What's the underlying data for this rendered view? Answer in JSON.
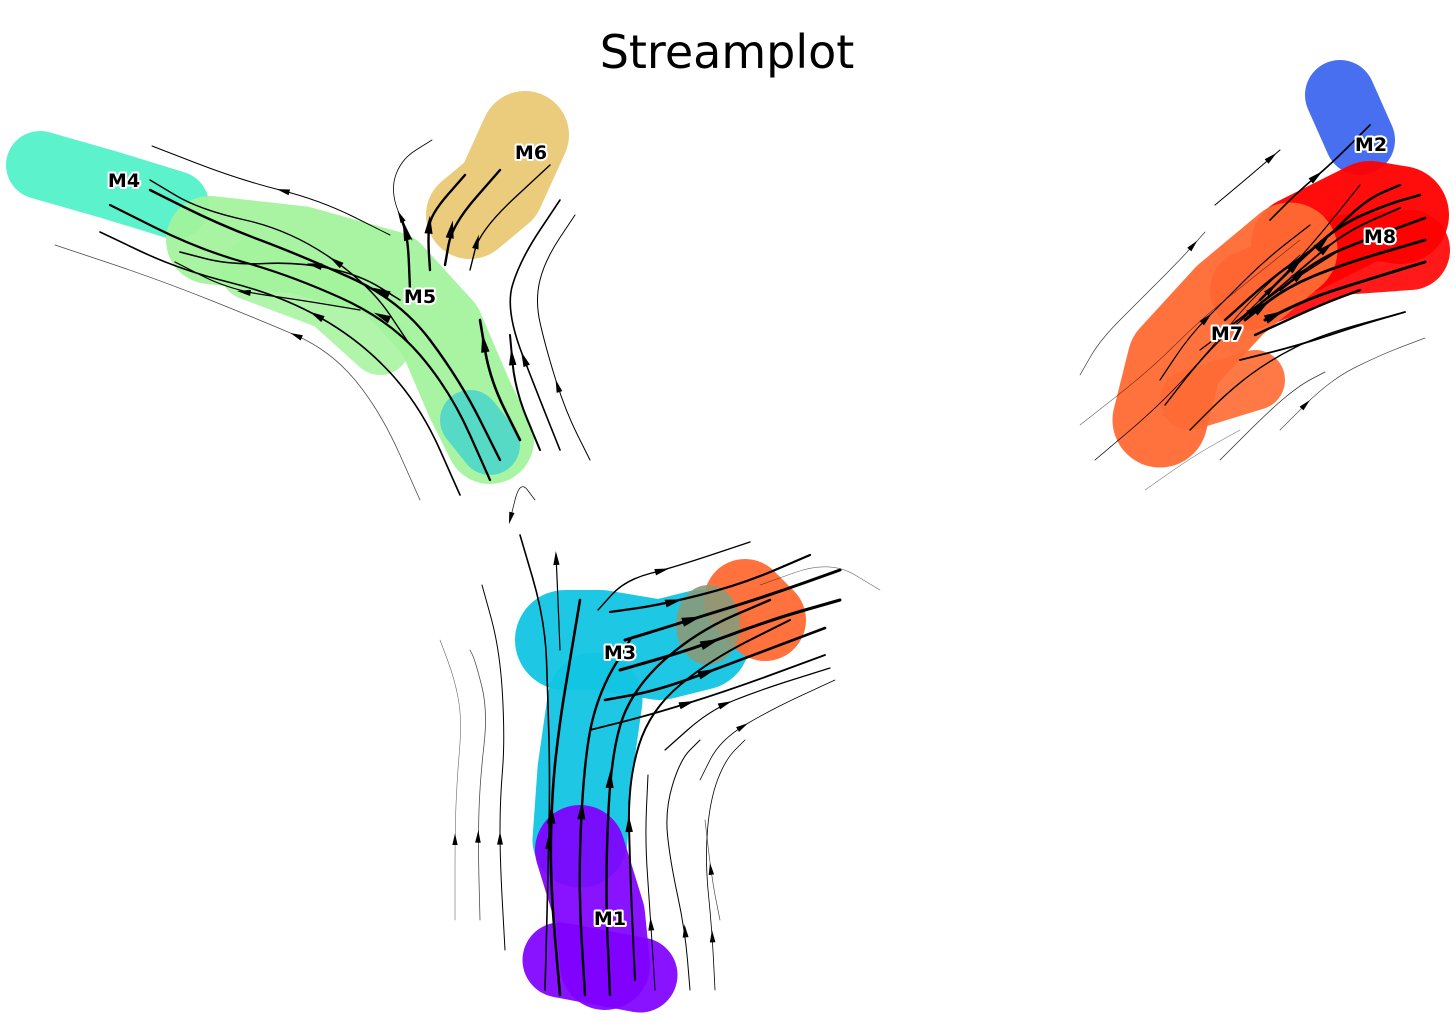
{
  "chart_data": {
    "type": "scatter",
    "subtype": "streamplot",
    "title": "Streamplot",
    "xlabel": "",
    "ylabel": "",
    "axes_visible": false,
    "grid": false,
    "legend": "none",
    "clusters": [
      {
        "name": "M1",
        "color": "#8000ff",
        "centroid": [
          610,
          918
        ]
      },
      {
        "name": "M2",
        "color": "#3f67f0",
        "centroid": [
          1371,
          144
        ]
      },
      {
        "name": "M3",
        "color": "#12c5e3",
        "centroid": [
          620,
          652
        ]
      },
      {
        "name": "M4",
        "color": "#50f2c8",
        "centroid": [
          124,
          180
        ]
      },
      {
        "name": "M5",
        "color": "#a2f39b",
        "centroid": [
          420,
          296
        ]
      },
      {
        "name": "M6",
        "color": "#eac872",
        "centroid": [
          531,
          152
        ]
      },
      {
        "name": "M7",
        "color": "#ff6a33",
        "centroid": [
          1227,
          333
        ]
      },
      {
        "name": "M8",
        "color": "#ff0000",
        "centroid": [
          1380,
          236
        ]
      }
    ]
  }
}
